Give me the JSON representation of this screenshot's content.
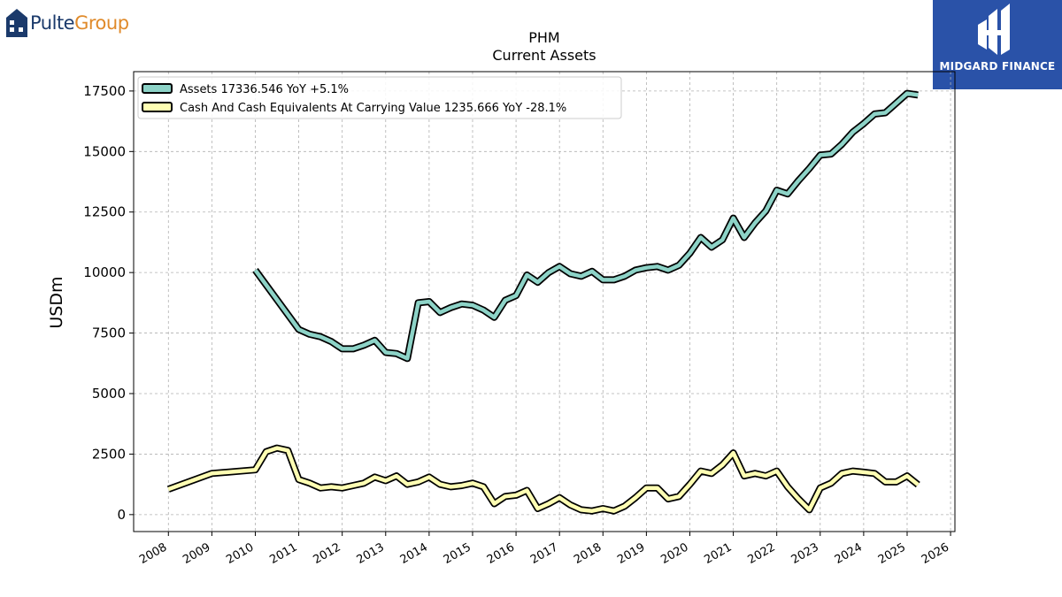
{
  "logos": {
    "left_part1": "Pulte",
    "left_part2": "Group",
    "right_name": "MIDGARD FINANCE",
    "left_icon": "house-icon",
    "right_icon": "midgard-monogram-icon"
  },
  "chart_data": {
    "type": "line",
    "title": "PHM",
    "subtitle": "Current  Assets",
    "ylabel": "USDm",
    "xlabel": "",
    "xlim": [
      2007.2,
      2026.1
    ],
    "ylim": [
      -700,
      18300
    ],
    "grid": true,
    "legend_position": "top-left",
    "yticks": [
      0,
      2500,
      5000,
      7500,
      10000,
      12500,
      15000,
      17500
    ],
    "ytick_labels": [
      "0",
      "2500",
      "5000",
      "7500",
      "10000",
      "12500",
      "15000",
      "17500"
    ],
    "xticks": [
      2008,
      2009,
      2010,
      2011,
      2012,
      2013,
      2014,
      2015,
      2016,
      2017,
      2018,
      2019,
      2020,
      2021,
      2022,
      2023,
      2024,
      2025,
      2026
    ],
    "xtick_labels": [
      "2008",
      "2009",
      "2010",
      "2011",
      "2012",
      "2013",
      "2014",
      "2015",
      "2016",
      "2017",
      "2018",
      "2019",
      "2020",
      "2021",
      "2022",
      "2023",
      "2024",
      "2025",
      "2026"
    ],
    "series": [
      {
        "name": "Assets",
        "legend_label": "Assets  17336.546 YoY +5.1%",
        "color": "#8dd3c7",
        "x": [
          2010.0,
          2011.0,
          2011.25,
          2011.5,
          2011.75,
          2012.0,
          2012.25,
          2012.5,
          2012.75,
          2013.0,
          2013.25,
          2013.5,
          2013.75,
          2014.0,
          2014.25,
          2014.5,
          2014.75,
          2015.0,
          2015.25,
          2015.5,
          2015.75,
          2016.0,
          2016.25,
          2016.5,
          2016.75,
          2017.0,
          2017.25,
          2017.5,
          2017.75,
          2018.0,
          2018.25,
          2018.5,
          2018.75,
          2019.0,
          2019.25,
          2019.5,
          2019.75,
          2020.0,
          2020.25,
          2020.5,
          2020.75,
          2021.0,
          2021.25,
          2021.5,
          2021.75,
          2022.0,
          2022.25,
          2022.5,
          2022.75,
          2023.0,
          2023.25,
          2023.5,
          2023.75,
          2024.0,
          2024.25,
          2024.5,
          2024.75,
          2025.0,
          2025.25
        ],
        "values": [
          10100,
          7650,
          7450,
          7350,
          7150,
          6850,
          6850,
          7000,
          7200,
          6700,
          6650,
          6450,
          8750,
          8800,
          8350,
          8550,
          8700,
          8650,
          8450,
          8150,
          8850,
          9050,
          9900,
          9600,
          10000,
          10250,
          9950,
          9850,
          10050,
          9700,
          9700,
          9850,
          10100,
          10200,
          10250,
          10100,
          10300,
          10800,
          11450,
          11050,
          11350,
          12250,
          11450,
          12050,
          12550,
          13400,
          13250,
          13800,
          14300,
          14850,
          14900,
          15300,
          15800,
          16150,
          16550,
          16600,
          17000,
          17400,
          17336.546
        ]
      },
      {
        "name": "Cash And Cash Equivalents At Carrying Value",
        "legend_label": "Cash And Cash Equivalents At Carrying Value  1235.666 YoY -28.1%",
        "color": "#ffffb3",
        "x": [
          2008.0,
          2009.0,
          2010.0,
          2010.25,
          2010.5,
          2010.75,
          2011.0,
          2011.25,
          2011.5,
          2011.75,
          2012.0,
          2012.25,
          2012.5,
          2012.75,
          2013.0,
          2013.25,
          2013.5,
          2013.75,
          2014.0,
          2014.25,
          2014.5,
          2014.75,
          2015.0,
          2015.25,
          2015.5,
          2015.75,
          2016.0,
          2016.25,
          2016.5,
          2016.75,
          2017.0,
          2017.25,
          2017.5,
          2017.75,
          2018.0,
          2018.25,
          2018.5,
          2018.75,
          2019.0,
          2019.25,
          2019.5,
          2019.75,
          2020.0,
          2020.25,
          2020.5,
          2020.75,
          2021.0,
          2021.25,
          2021.5,
          2021.75,
          2022.0,
          2022.25,
          2022.5,
          2022.75,
          2023.0,
          2023.25,
          2023.5,
          2023.75,
          2024.0,
          2024.25,
          2024.5,
          2024.75,
          2025.0,
          2025.25
        ],
        "values": [
          1050,
          1700,
          1850,
          2600,
          2750,
          2650,
          1450,
          1300,
          1100,
          1150,
          1100,
          1200,
          1300,
          1550,
          1400,
          1600,
          1250,
          1350,
          1550,
          1250,
          1150,
          1200,
          1300,
          1150,
          450,
          750,
          800,
          1000,
          250,
          450,
          700,
          400,
          200,
          150,
          250,
          150,
          350,
          700,
          1100,
          1100,
          650,
          750,
          1250,
          1800,
          1700,
          2050,
          2550,
          1600,
          1700,
          1600,
          1800,
          1150,
          650,
          200,
          1100,
          1300,
          1700,
          1800,
          1750,
          1700,
          1350,
          1350,
          1600,
          1235.666
        ]
      }
    ]
  }
}
